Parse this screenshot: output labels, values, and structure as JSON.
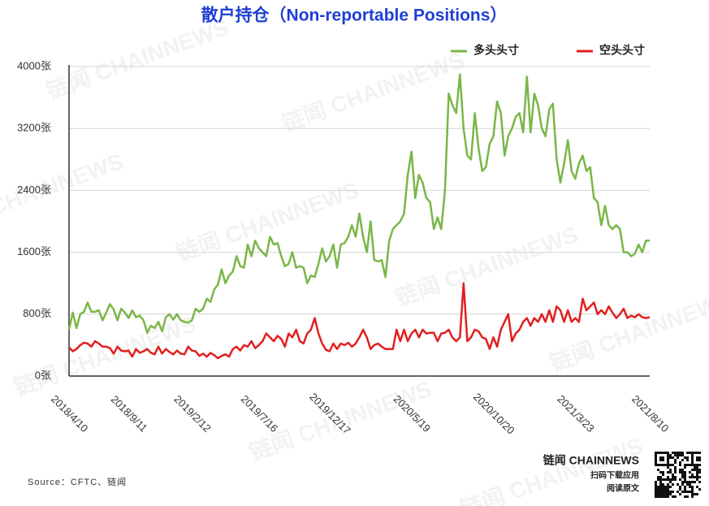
{
  "chart_data": {
    "type": "line",
    "title": "散户持仓（Non-reportable Positions）",
    "source": "Source：CFTC、链闻",
    "watermark": "链闻 CHAINNEWS",
    "brand": {
      "name": "链闻 CHAINNEWS",
      "line1": "扫码下载应用",
      "line2": "阅读原文"
    },
    "legend": "top-right",
    "grid": true,
    "ylim": [
      0,
      4000
    ],
    "yticks": [
      {
        "value": 0,
        "label": "0张"
      },
      {
        "value": 800,
        "label": "800张"
      },
      {
        "value": 1600,
        "label": "1600张"
      },
      {
        "value": 2400,
        "label": "2400张"
      },
      {
        "value": 3200,
        "label": "3200张"
      },
      {
        "value": 4000,
        "label": "4000张"
      }
    ],
    "categories": [
      "2018/4/10",
      null,
      null,
      null,
      null,
      null,
      null,
      null,
      null,
      null,
      null,
      null,
      null,
      null,
      null,
      null,
      "2018/9/11",
      null,
      null,
      null,
      null,
      null,
      null,
      null,
      null,
      null,
      null,
      null,
      null,
      null,
      null,
      null,
      null,
      "2019/2/12",
      null,
      null,
      null,
      null,
      null,
      null,
      null,
      null,
      null,
      null,
      null,
      null,
      null,
      null,
      null,
      null,
      null,
      "2019/7/16",
      null,
      null,
      null,
      null,
      null,
      null,
      null,
      null,
      null,
      null,
      null,
      null,
      null,
      null,
      null,
      null,
      null,
      null,
      "2019/12/17",
      null,
      null,
      null,
      null,
      null,
      null,
      null,
      null,
      null,
      null,
      null,
      null,
      null,
      null,
      null,
      null,
      null,
      null,
      null,
      null,
      null,
      "2020/5/19",
      null,
      null,
      null,
      null,
      null,
      null,
      null,
      null,
      null,
      null,
      null,
      null,
      null,
      null,
      null,
      null,
      null,
      null,
      null,
      null,
      null,
      "2020/10/20",
      null,
      null,
      null,
      null,
      null,
      null,
      null,
      null,
      null,
      null,
      null,
      null,
      null,
      null,
      null,
      null,
      null,
      null,
      null,
      null,
      null,
      "2021/3/23",
      null,
      null,
      null,
      null,
      null,
      null,
      null,
      null,
      null,
      null,
      null,
      null,
      null,
      null,
      null,
      null,
      null,
      null,
      null,
      "2021/8/10"
    ],
    "series": [
      {
        "name": "多头头寸",
        "color": "#7ab648",
        "values": [
          600,
          820,
          620,
          800,
          830,
          950,
          830,
          830,
          850,
          720,
          820,
          930,
          860,
          720,
          870,
          820,
          750,
          850,
          760,
          780,
          720,
          560,
          650,
          620,
          700,
          580,
          760,
          800,
          730,
          800,
          720,
          700,
          690,
          720,
          870,
          830,
          870,
          1000,
          960,
          1120,
          1180,
          1380,
          1200,
          1300,
          1350,
          1550,
          1420,
          1400,
          1700,
          1550,
          1750,
          1650,
          1600,
          1550,
          1800,
          1700,
          1720,
          1550,
          1420,
          1450,
          1600,
          1400,
          1420,
          1400,
          1200,
          1300,
          1280,
          1450,
          1650,
          1480,
          1550,
          1700,
          1400,
          1700,
          1720,
          1800,
          1950,
          1800,
          2100,
          1800,
          1600,
          2000,
          1500,
          1480,
          1500,
          1280,
          1750,
          1900,
          1950,
          2000,
          2100,
          2600,
          2900,
          2300,
          2600,
          2500,
          2300,
          2250,
          1900,
          2050,
          1900,
          2400,
          3650,
          3500,
          3400,
          3900,
          3200,
          2850,
          2800,
          3400,
          2950,
          2650,
          2700,
          3000,
          3100,
          3550,
          3400,
          2850,
          3100,
          3200,
          3350,
          3400,
          3150,
          3870,
          3150,
          3650,
          3500,
          3200,
          3100,
          3450,
          3520,
          2800,
          2500,
          2750,
          3050,
          2650,
          2550,
          2750,
          2850,
          2650,
          2700,
          2300,
          2250,
          1950,
          2200,
          1950,
          1900,
          1950,
          1900,
          1600,
          1600,
          1550,
          1580,
          1700,
          1600,
          1750,
          1750
        ]
      },
      {
        "name": "空头头寸",
        "color": "#e0201f",
        "values": [
          370,
          320,
          350,
          400,
          430,
          420,
          380,
          450,
          420,
          380,
          380,
          360,
          290,
          380,
          330,
          320,
          330,
          250,
          350,
          300,
          320,
          350,
          300,
          280,
          380,
          290,
          350,
          310,
          280,
          330,
          290,
          280,
          380,
          330,
          320,
          260,
          290,
          250,
          300,
          270,
          230,
          260,
          280,
          250,
          350,
          380,
          330,
          400,
          380,
          450,
          360,
          400,
          450,
          550,
          500,
          450,
          520,
          480,
          380,
          550,
          500,
          600,
          450,
          420,
          550,
          600,
          750,
          550,
          420,
          340,
          320,
          420,
          350,
          420,
          400,
          430,
          380,
          420,
          500,
          600,
          500,
          350,
          400,
          420,
          380,
          350,
          350,
          350,
          600,
          450,
          600,
          450,
          550,
          600,
          500,
          600,
          550,
          560,
          560,
          450,
          550,
          560,
          600,
          500,
          450,
          500,
          1200,
          450,
          500,
          600,
          580,
          500,
          480,
          350,
          500,
          380,
          600,
          700,
          800,
          450,
          550,
          600,
          700,
          750,
          650,
          750,
          700,
          800,
          700,
          850,
          700,
          900,
          850,
          700,
          850,
          700,
          750,
          700,
          1000,
          850,
          900,
          950,
          800,
          850,
          800,
          900,
          820,
          750,
          800,
          870,
          750,
          780,
          760,
          800,
          760,
          750,
          760
        ]
      }
    ]
  }
}
